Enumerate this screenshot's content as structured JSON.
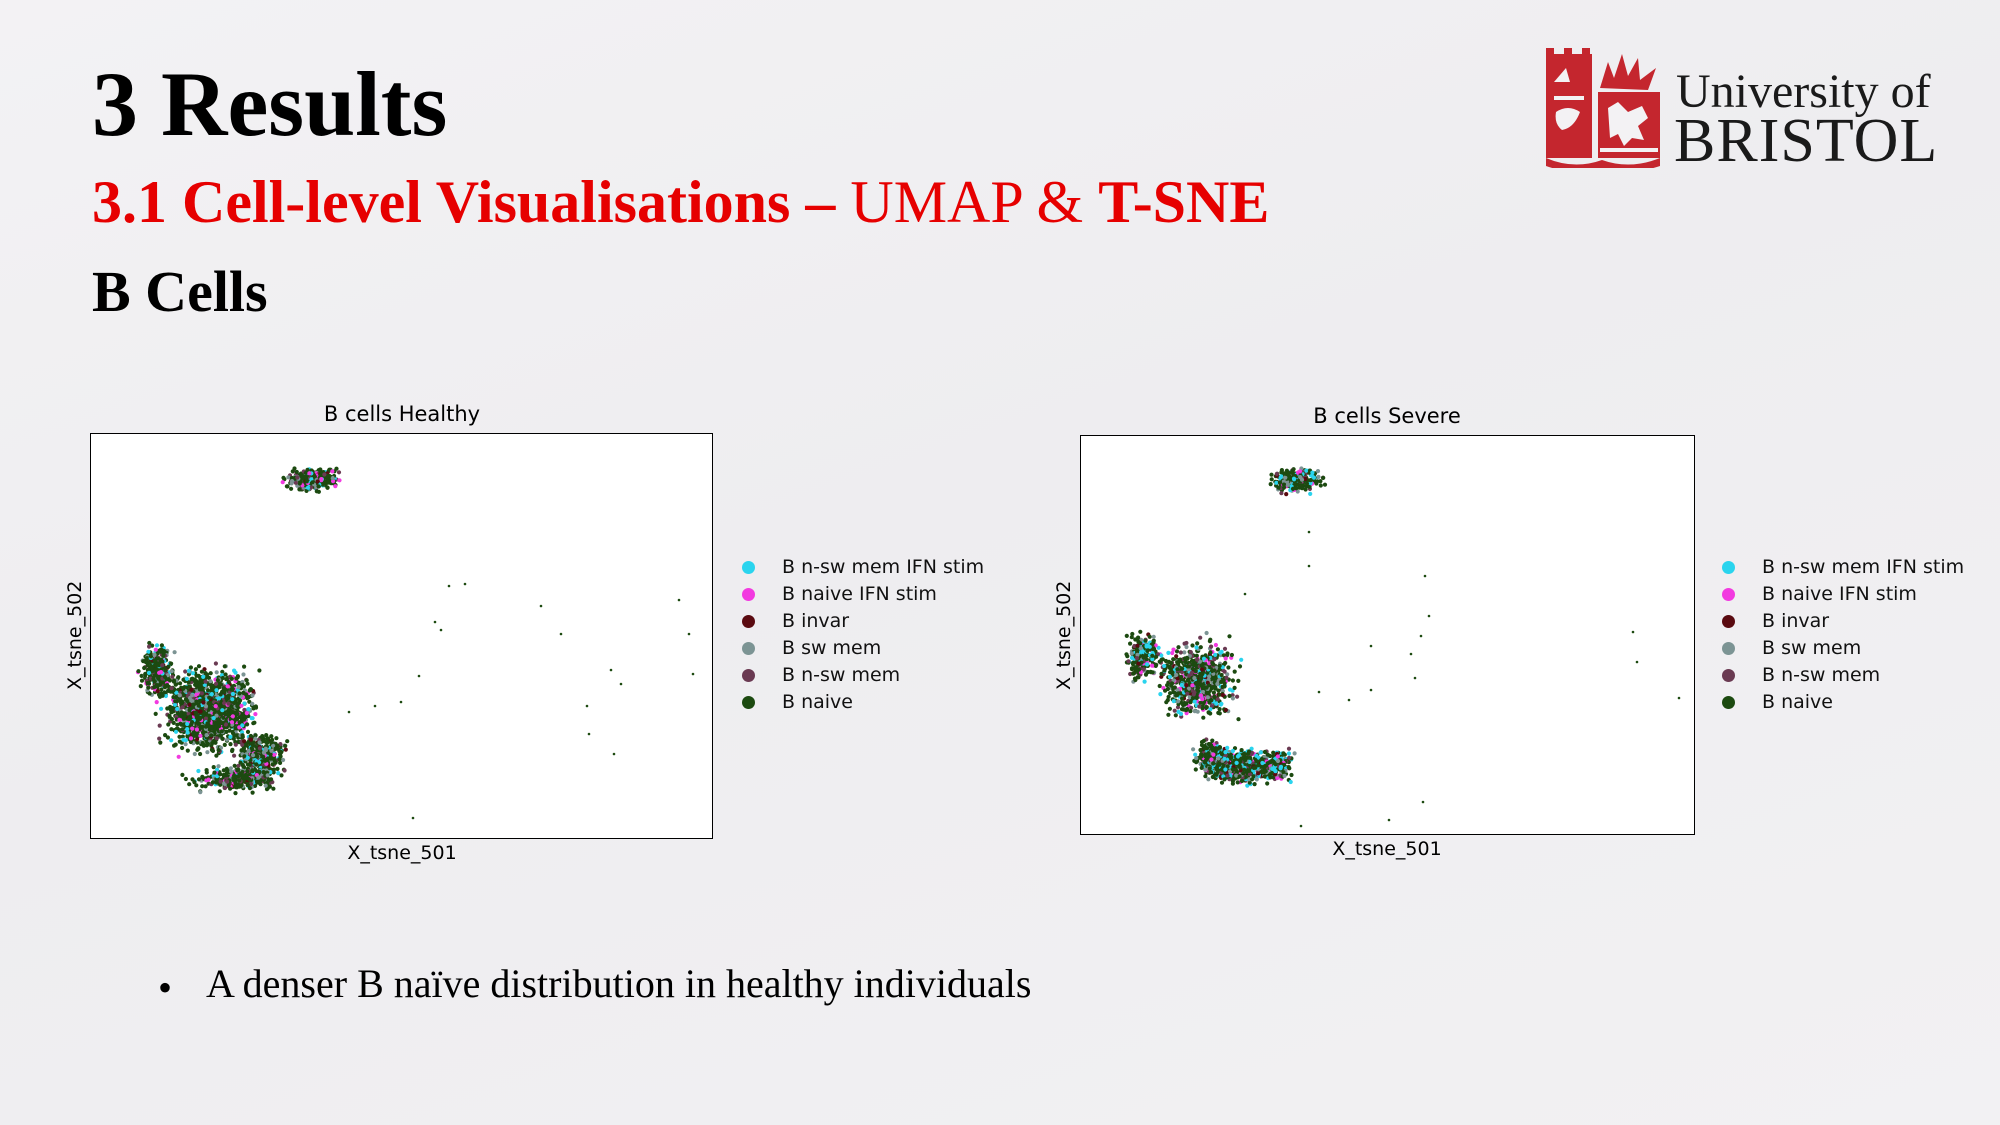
{
  "slide": {
    "title": "3 Results",
    "subtitle_bold": "3.1 Cell-level Visualisations –",
    "subtitle_normal": " UMAP & ",
    "subtitle_bold2": "T-SNE",
    "section": "B Cells",
    "bullet": "A denser B naïve distribution in healthy individuals"
  },
  "logo": {
    "line1": "University of",
    "line2": "BRISTOL",
    "color": "#c4262e"
  },
  "legend": [
    {
      "label": "B n-sw mem IFN stim",
      "color": "#2ad4ee"
    },
    {
      "label": "B naive IFN stim",
      "color": "#f23ae0"
    },
    {
      "label": "B invar",
      "color": "#5a0a10"
    },
    {
      "label": "B sw mem",
      "color": "#7c9494"
    },
    {
      "label": "B n-sw mem",
      "color": "#6a3a52"
    },
    {
      "label": "B naive",
      "color": "#1c4a10"
    }
  ],
  "chart_data": [
    {
      "type": "scatter",
      "title": "B cells Healthy",
      "xlabel": "X_tsne_501",
      "ylabel": "X_tsne_502",
      "series": [
        {
          "name": "B n-sw mem IFN stim"
        },
        {
          "name": "B naive IFN stim"
        },
        {
          "name": "B invar"
        },
        {
          "name": "B sw mem"
        },
        {
          "name": "B n-sw mem"
        },
        {
          "name": "B naive"
        }
      ]
    },
    {
      "type": "scatter",
      "title": "B cells Severe",
      "xlabel": "X_tsne_501",
      "ylabel": "X_tsne_502",
      "series": [
        {
          "name": "B n-sw mem IFN stim"
        },
        {
          "name": "B naive IFN stim"
        },
        {
          "name": "B invar"
        },
        {
          "name": "B sw mem"
        },
        {
          "name": "B n-sw mem"
        },
        {
          "name": "B naive"
        }
      ]
    }
  ]
}
